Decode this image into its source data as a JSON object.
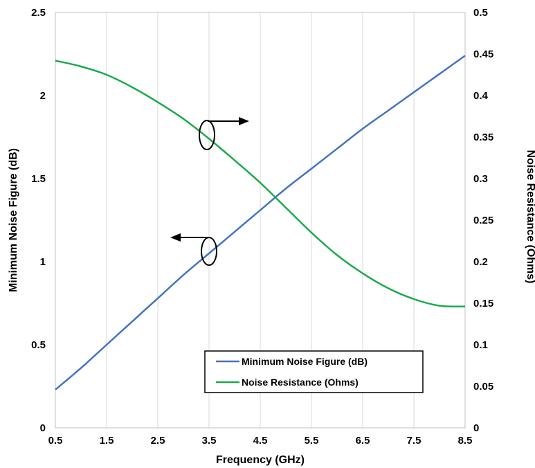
{
  "chart_data": {
    "type": "line",
    "title": "",
    "xlabel": "Frequency (GHz)",
    "ylabel": "Minimum Noise Figure (dB)",
    "y2label": "Noise Resistance (Ohms)",
    "xlim": [
      0.5,
      8.5
    ],
    "ylim": [
      0,
      2.5
    ],
    "y2lim": [
      0,
      0.5
    ],
    "x_ticks": [
      "0.5",
      "1.5",
      "2.5",
      "3.5",
      "4.5",
      "5.5",
      "6.5",
      "7.5",
      "8.5"
    ],
    "y_ticks": [
      "0",
      "0.5",
      "1",
      "1.5",
      "2",
      "2.5"
    ],
    "y2_ticks": [
      "0",
      "0.05",
      "0.1",
      "0.15",
      "0.2",
      "0.25",
      "0.3",
      "0.35",
      "0.4",
      "0.45",
      "0.5"
    ],
    "grid": "vertical",
    "legend_position": "bottom-right",
    "x": [
      0.5,
      1.0,
      1.5,
      2.0,
      2.5,
      3.0,
      3.5,
      4.0,
      4.5,
      5.0,
      5.5,
      6.0,
      6.5,
      7.0,
      7.5,
      8.0,
      8.5
    ],
    "series": [
      {
        "name": "Minimum Noise Figure (dB)",
        "axis": "left",
        "color": "#4472C4",
        "values": [
          0.23,
          0.36,
          0.5,
          0.64,
          0.78,
          0.92,
          1.05,
          1.18,
          1.31,
          1.44,
          1.56,
          1.68,
          1.8,
          1.91,
          2.02,
          2.13,
          2.24
        ]
      },
      {
        "name": "Noise Resistance (Ohms)",
        "axis": "right",
        "color": "#1AAA4B",
        "values": [
          0.442,
          0.435,
          0.425,
          0.41,
          0.392,
          0.372,
          0.348,
          0.322,
          0.295,
          0.265,
          0.235,
          0.208,
          0.186,
          0.168,
          0.155,
          0.147,
          0.146
        ]
      }
    ]
  },
  "colors": {
    "grid": "#d9d9d9",
    "arrow": "#000000"
  }
}
